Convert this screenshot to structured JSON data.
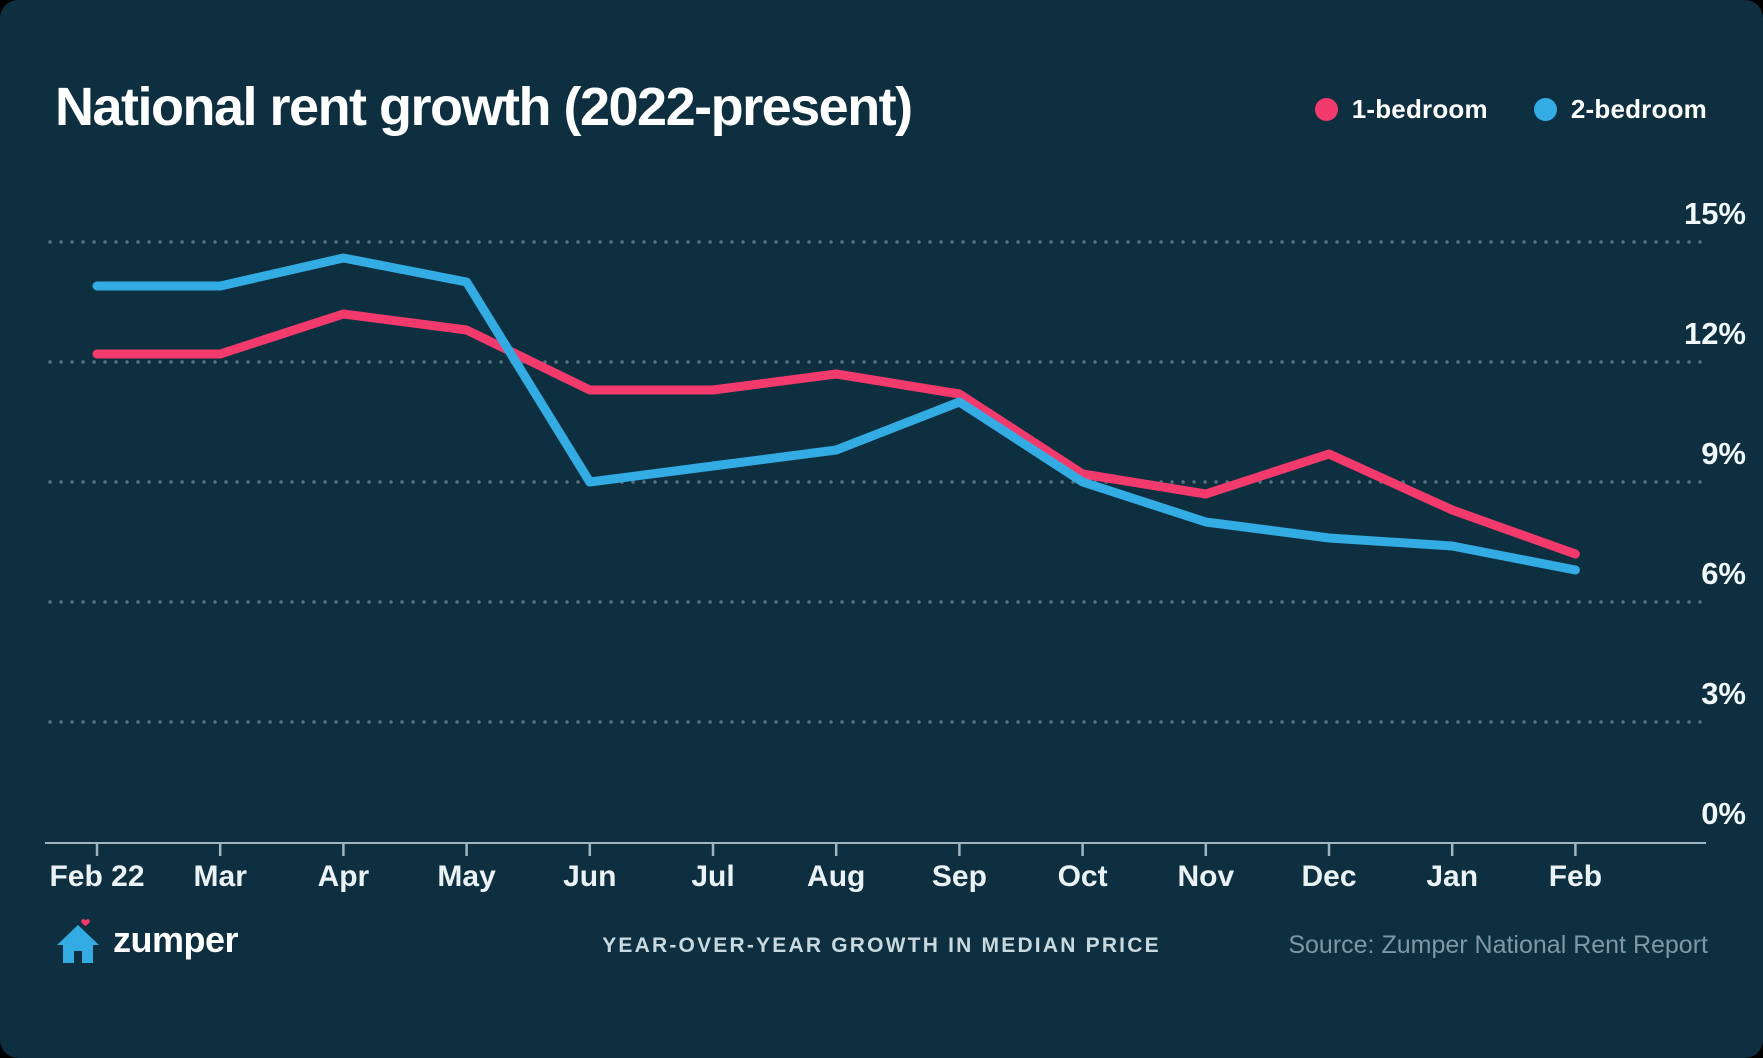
{
  "header": {
    "title": "National rent growth (2022-present)"
  },
  "legend": [
    {
      "label": "1-bedroom",
      "color": "#F23A6C"
    },
    {
      "label": "2-bedroom",
      "color": "#33ABE3"
    }
  ],
  "chart_data": {
    "type": "line",
    "title": "National rent growth (2022-present)",
    "categories": [
      "Feb 22",
      "Mar",
      "Apr",
      "May",
      "Jun",
      "Jul",
      "Aug",
      "Sep",
      "Oct",
      "Nov",
      "Dec",
      "Jan",
      "Feb"
    ],
    "series": [
      {
        "name": "1-bedroom",
        "color": "#F23A6C",
        "values": [
          12.2,
          12.2,
          13.2,
          12.8,
          11.3,
          11.3,
          11.7,
          11.2,
          9.2,
          8.7,
          9.7,
          8.3,
          7.2
        ]
      },
      {
        "name": "2-bedroom",
        "color": "#33ABE3",
        "values": [
          13.9,
          13.9,
          14.6,
          14.0,
          9.0,
          9.4,
          9.8,
          11.0,
          9.0,
          8.0,
          7.6,
          7.4,
          6.8
        ]
      }
    ],
    "xlabel": "",
    "ylabel": "",
    "ylim": [
      0,
      15
    ],
    "y_tick_step": 3,
    "y_ticks": [
      "0%",
      "3%",
      "6%",
      "9%",
      "12%",
      "15%"
    ],
    "grid": "horizontal-dotted",
    "legend_position": "top-right"
  },
  "footer": {
    "brand": "zumper",
    "caption": "YEAR-OVER-YEAR GROWTH IN MEDIAN PRICE",
    "source": "Source: Zumper National Rent Report"
  },
  "colors": {
    "background": "#0D2F3F",
    "one_bedroom": "#F23A6C",
    "two_bedroom": "#33ABE3",
    "axis": "#9FB5C0",
    "grid_dots": "rgba(190,210,220,0.42)",
    "tick_label": "#F2F7F9",
    "text_primary": "#FFFFFF",
    "text_caption": "#C9D9E0",
    "text_muted": "#7E98A6"
  }
}
